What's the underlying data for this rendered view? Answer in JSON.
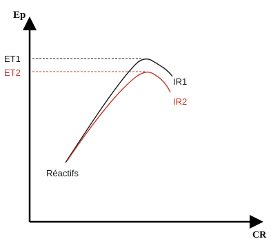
{
  "axes": {
    "y_label": "Ep",
    "x_label": "CR"
  },
  "levels": {
    "et1": "ET1",
    "et2": "ET2"
  },
  "curves": {
    "ir1": {
      "label": "IR1",
      "color": "#1a1a1a"
    },
    "ir2": {
      "label": "IR2",
      "color": "#c0392b"
    }
  },
  "reactants_label": "Réactifs",
  "colors": {
    "axis": "#000000",
    "et1_text": "#1a1a1a",
    "et2_text": "#c0392b"
  }
}
